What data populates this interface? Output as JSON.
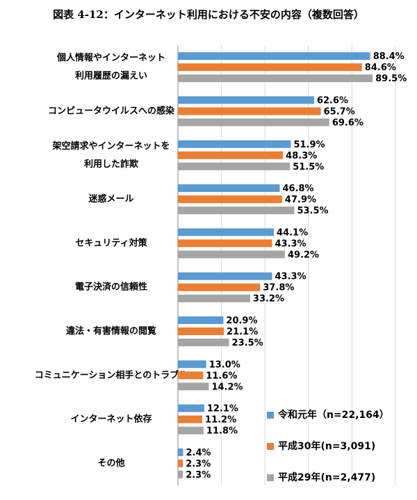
{
  "chart_data": {
    "type": "barh",
    "title": "図表 4-12：インターネット利用における不安の内容（複数回答）",
    "categories": [
      [
        "個人情報やインターネット",
        "利用履歴の漏えい"
      ],
      [
        "コンピュータウイルスへの感染"
      ],
      [
        "架空請求やインターネットを",
        "利用した詐欺"
      ],
      [
        "迷惑メール"
      ],
      [
        "セキュリティ対策"
      ],
      [
        "電子決済の信頼性"
      ],
      [
        "違法・有害情報の閲覧"
      ],
      [
        "コミュニケーション相手とのトラブル"
      ],
      [
        "インターネット依存"
      ],
      [
        "その他"
      ]
    ],
    "series": [
      {
        "name": "令和元年（n=22,164）",
        "color": "#5b9bd5",
        "values": [
          88.4,
          62.6,
          51.9,
          46.8,
          44.1,
          43.3,
          20.9,
          13.0,
          12.1,
          2.4
        ],
        "value_labels": [
          "88.4%",
          "62.6%",
          "51.9%",
          "46.8%",
          "44.1%",
          "43.3%",
          "20.9%",
          "13.0%",
          "12.1%",
          "2.4%"
        ]
      },
      {
        "name": "平成30年(n=3,091)",
        "color": "#ed7d31",
        "values": [
          84.6,
          65.7,
          48.3,
          47.9,
          43.3,
          37.8,
          21.1,
          11.6,
          11.2,
          2.3
        ],
        "value_labels": [
          "84.6%",
          "65.7%",
          "48.3%",
          "47.9%",
          "43.3%",
          "37.8%",
          "21.1%",
          "11.6%",
          "11.2%",
          "2.3%"
        ]
      },
      {
        "name": "平成29年(n=2,477)",
        "color": "#a5a5a5",
        "values": [
          89.5,
          69.6,
          51.5,
          53.5,
          49.2,
          33.2,
          23.5,
          14.2,
          11.8,
          2.3
        ],
        "value_labels": [
          "89.5%",
          "69.6%",
          "51.5%",
          "53.5%",
          "49.2%",
          "33.2%",
          "23.5%",
          "14.2%",
          "11.8%",
          "2.3%"
        ]
      }
    ],
    "xlim": [
      0,
      100
    ],
    "xticks": [
      0,
      20,
      40,
      60,
      80,
      100
    ],
    "grid": true,
    "legend": "lower-right"
  }
}
